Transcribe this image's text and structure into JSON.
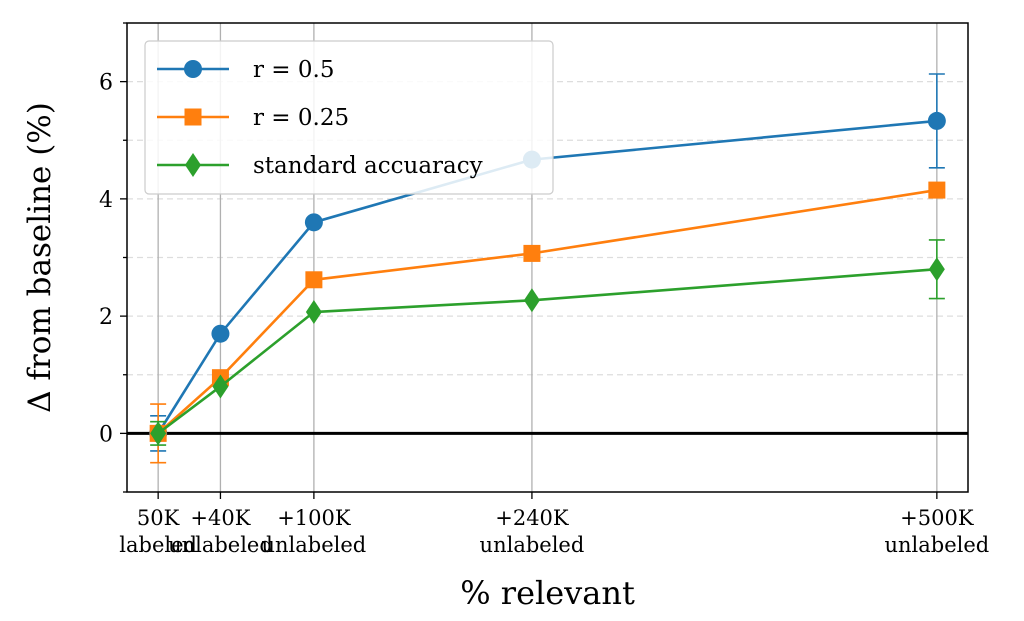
{
  "chart_data": {
    "type": "line",
    "xlabel": "% relevant",
    "ylabel": "Δ from baseline (%)",
    "ylim": [
      -1,
      7
    ],
    "yticks": [
      0,
      2,
      4,
      6
    ],
    "ytick_labels": [
      "0",
      "2",
      "4",
      "6"
    ],
    "categories": [
      [
        "50K",
        "labeled"
      ],
      [
        "+40K",
        "unlabeled"
      ],
      [
        "+100K",
        "unlabeled"
      ],
      [
        "+240K",
        "unlabeled"
      ],
      [
        "+500K",
        "unlabeled"
      ]
    ],
    "x": [
      50,
      90,
      150,
      290,
      550
    ],
    "grid": "vertical solid at ticks, horizontal dashed at minor steps",
    "legend_position": "top-left",
    "series": [
      {
        "name": "r = 0.5",
        "color": "#1f77b4",
        "marker": "circle",
        "values": [
          0.0,
          1.7,
          3.6,
          4.67,
          5.33
        ],
        "err": [
          0.3,
          null,
          null,
          null,
          0.8
        ]
      },
      {
        "name": "r = 0.25",
        "color": "#ff7f0e",
        "marker": "square",
        "values": [
          0.0,
          0.95,
          2.62,
          3.07,
          4.15
        ],
        "err": [
          0.5,
          null,
          null,
          null,
          0.1
        ]
      },
      {
        "name": "standard accuaracy",
        "color": "#2ca02c",
        "marker": "diamond",
        "values": [
          0.0,
          0.8,
          2.07,
          2.27,
          2.8
        ],
        "err": [
          0.2,
          null,
          null,
          null,
          0.5
        ]
      }
    ]
  }
}
